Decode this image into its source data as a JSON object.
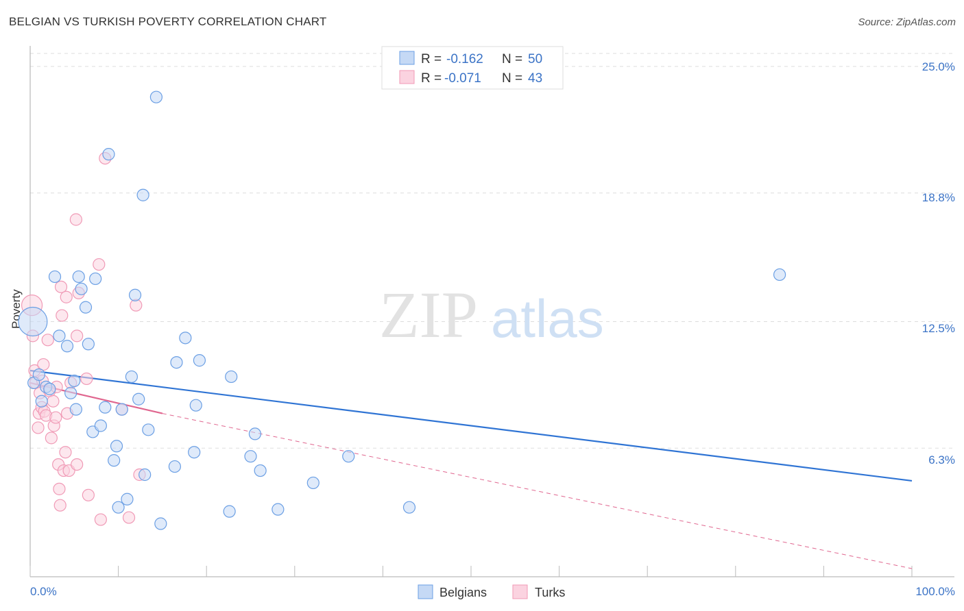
{
  "title": "BELGIAN VS TURKISH POVERTY CORRELATION CHART",
  "source": "Source: ZipAtlas.com",
  "watermark": {
    "zip": "ZIP",
    "atlas": "atlas"
  },
  "colors": {
    "belgians": "#6b9fe4",
    "belgians_fill": "#c5d9f5",
    "turks": "#f09ab6",
    "turks_fill": "#fbd3e0",
    "blue_line": "#2f74d4",
    "pink_line": "#e0668f",
    "accent_text": "#3b73c6"
  },
  "chart_data": {
    "type": "scatter",
    "title": "BELGIAN VS TURKISH POVERTY CORRELATION CHART",
    "xlabel": "",
    "ylabel": "Poverty",
    "xlim": [
      0,
      100
    ],
    "ylim": [
      0,
      26.2
    ],
    "x_tick_labels": [
      "0.0%",
      "100.0%"
    ],
    "y_ticks": [
      6.3,
      12.5,
      18.8,
      25.0
    ],
    "y_tick_labels": [
      "6.3%",
      "12.5%",
      "18.8%",
      "25.0%"
    ],
    "grid": true,
    "legend_position": "bottom",
    "stats": [
      {
        "r_label": "R =",
        "r": "-0.162",
        "n_label": "N =",
        "n": "50"
      },
      {
        "r_label": "R =",
        "r": "-0.071",
        "n_label": "N =",
        "n": "43"
      }
    ],
    "series": [
      {
        "name": "Belgians",
        "trend": {
          "x": [
            0,
            100
          ],
          "y": [
            10.1,
            4.7
          ]
        },
        "points": [
          [
            0.3,
            12.5
          ],
          [
            0.4,
            9.5
          ],
          [
            1.0,
            9.9
          ],
          [
            1.3,
            8.6
          ],
          [
            1.8,
            9.3
          ],
          [
            2.2,
            9.2
          ],
          [
            2.8,
            14.7
          ],
          [
            3.3,
            11.8
          ],
          [
            4.2,
            11.3
          ],
          [
            4.6,
            9.0
          ],
          [
            5.0,
            9.6
          ],
          [
            5.2,
            8.2
          ],
          [
            5.5,
            14.7
          ],
          [
            5.8,
            14.1
          ],
          [
            6.3,
            13.2
          ],
          [
            6.6,
            11.4
          ],
          [
            7.1,
            7.1
          ],
          [
            7.4,
            14.6
          ],
          [
            8.0,
            7.4
          ],
          [
            8.5,
            8.3
          ],
          [
            8.9,
            20.7
          ],
          [
            9.5,
            5.7
          ],
          [
            9.8,
            6.4
          ],
          [
            10.0,
            3.4
          ],
          [
            10.4,
            8.2
          ],
          [
            11.0,
            3.8
          ],
          [
            11.5,
            9.8
          ],
          [
            11.9,
            13.8
          ],
          [
            12.3,
            8.7
          ],
          [
            12.8,
            18.7
          ],
          [
            13.0,
            5.0
          ],
          [
            13.4,
            7.2
          ],
          [
            14.3,
            23.5
          ],
          [
            14.8,
            2.6
          ],
          [
            16.4,
            5.4
          ],
          [
            16.6,
            10.5
          ],
          [
            17.6,
            11.7
          ],
          [
            18.6,
            6.1
          ],
          [
            18.8,
            8.4
          ],
          [
            19.2,
            10.6
          ],
          [
            22.6,
            3.2
          ],
          [
            22.8,
            9.8
          ],
          [
            25.0,
            5.9
          ],
          [
            25.5,
            7.0
          ],
          [
            26.1,
            5.2
          ],
          [
            28.1,
            3.3
          ],
          [
            32.1,
            4.6
          ],
          [
            36.1,
            5.9
          ],
          [
            43.0,
            3.4
          ],
          [
            85.0,
            14.8
          ]
        ]
      },
      {
        "name": "Turks",
        "trend": {
          "x": [
            0,
            15
          ],
          "y": [
            9.5,
            8.0
          ]
        },
        "trend_extended": {
          "x": [
            15,
            100
          ],
          "y": [
            8.0,
            0.4
          ]
        },
        "points": [
          [
            0.2,
            13.3
          ],
          [
            0.3,
            11.8
          ],
          [
            0.5,
            10.1
          ],
          [
            0.6,
            9.5
          ],
          [
            0.9,
            7.3
          ],
          [
            1.0,
            8.0
          ],
          [
            1.1,
            9.0
          ],
          [
            1.3,
            8.3
          ],
          [
            1.4,
            9.6
          ],
          [
            1.5,
            10.4
          ],
          [
            1.6,
            8.1
          ],
          [
            1.8,
            7.9
          ],
          [
            2.0,
            11.6
          ],
          [
            2.2,
            9.1
          ],
          [
            2.4,
            6.8
          ],
          [
            2.6,
            8.6
          ],
          [
            2.7,
            7.4
          ],
          [
            2.9,
            7.8
          ],
          [
            3.0,
            9.3
          ],
          [
            3.2,
            5.5
          ],
          [
            3.3,
            4.3
          ],
          [
            3.4,
            3.5
          ],
          [
            3.5,
            14.2
          ],
          [
            3.6,
            12.8
          ],
          [
            3.8,
            5.2
          ],
          [
            4.0,
            6.1
          ],
          [
            4.1,
            13.7
          ],
          [
            4.2,
            8.0
          ],
          [
            4.4,
            5.2
          ],
          [
            4.6,
            9.5
          ],
          [
            5.3,
            5.5
          ],
          [
            5.5,
            13.9
          ],
          [
            5.3,
            11.8
          ],
          [
            5.2,
            17.5
          ],
          [
            6.4,
            9.7
          ],
          [
            6.6,
            4.0
          ],
          [
            7.8,
            15.3
          ],
          [
            8.0,
            2.8
          ],
          [
            8.5,
            20.5
          ],
          [
            10.4,
            8.2
          ],
          [
            11.2,
            2.9
          ],
          [
            12.0,
            13.3
          ],
          [
            12.4,
            5.0
          ]
        ]
      }
    ]
  }
}
